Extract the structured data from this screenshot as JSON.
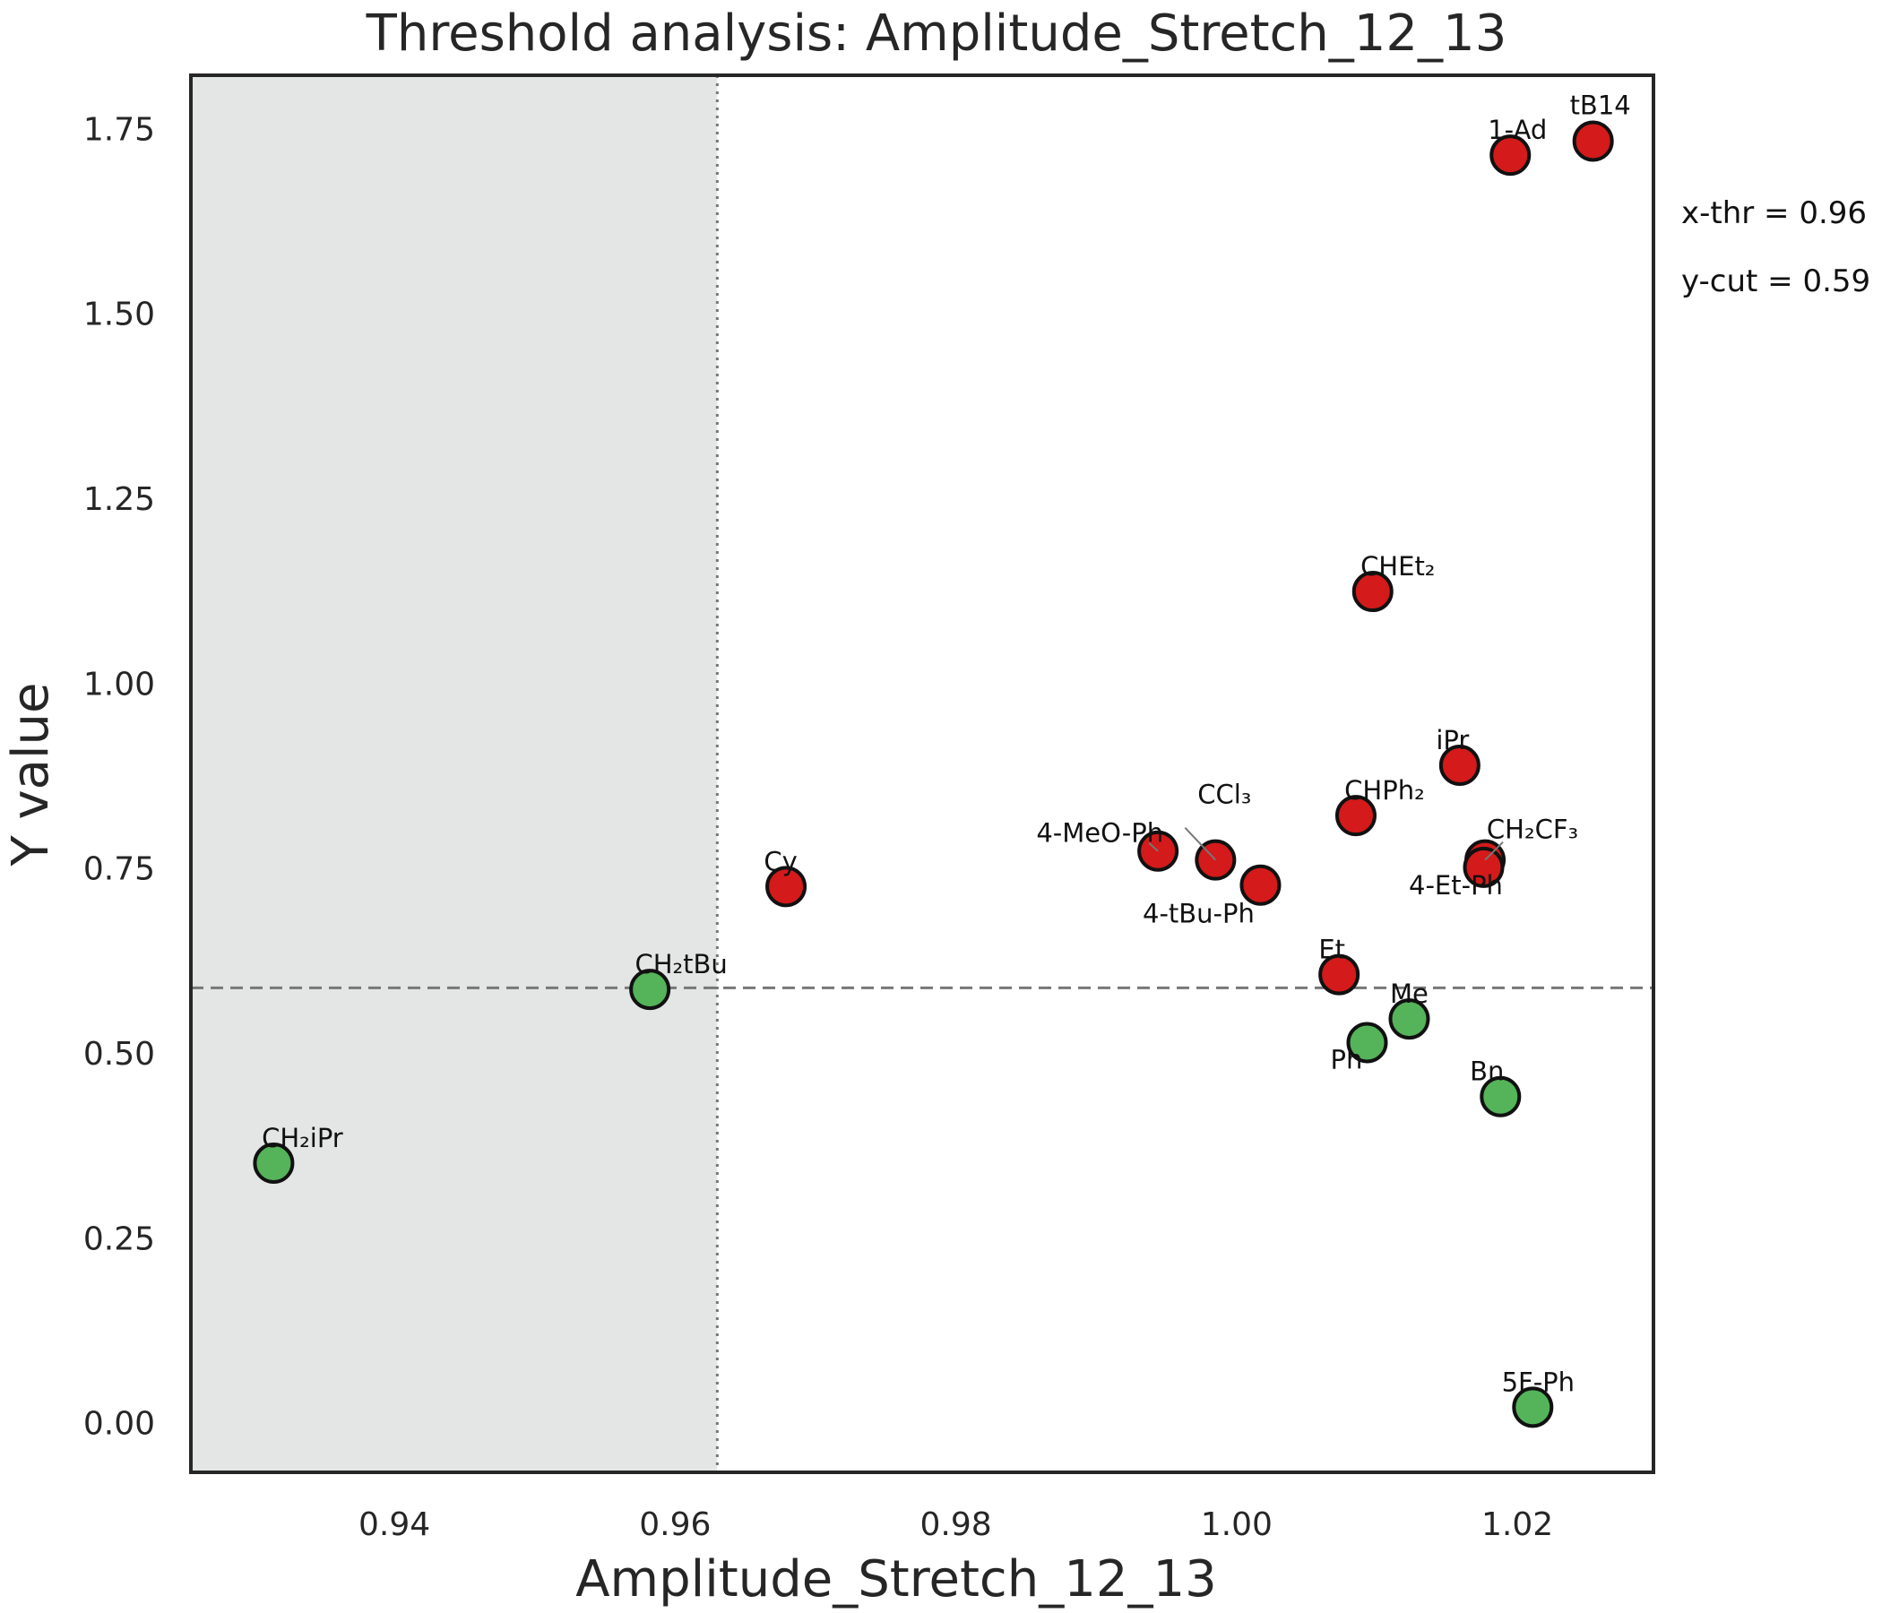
{
  "chart_data": {
    "type": "scatter",
    "title": "Threshold analysis: Amplitude_Stretch_12_13",
    "xlabel": "Amplitude_Stretch_12_13",
    "ylabel": "Y value",
    "xlim": [
      0.9255,
      1.0297
    ],
    "ylim": [
      -0.067,
      1.822
    ],
    "xticks": [
      0.94,
      0.96,
      0.98,
      1.0,
      1.02
    ],
    "xtick_labels": [
      "0.94",
      "0.96",
      "0.98",
      "1.00",
      "1.02"
    ],
    "yticks": [
      0.0,
      0.25,
      0.5,
      0.75,
      1.0,
      1.25,
      1.5,
      1.75
    ],
    "ytick_labels": [
      "0.00",
      "0.25",
      "0.50",
      "0.75",
      "1.00",
      "1.25",
      "1.50",
      "1.75"
    ],
    "x_threshold": 0.963,
    "y_cutoff": 0.588,
    "shaded_region": "x below threshold",
    "annotations": [
      "x-thr = 0.96",
      "y-cut = 0.59"
    ],
    "colors": {
      "above": "#d41a1a",
      "below": "#55b35a",
      "shade": "#e4e6e5",
      "frame": "#262626",
      "threshold_line": "#777777"
    },
    "points": [
      {
        "label": "tB14",
        "x": 1.0254,
        "y": 1.733,
        "group": "above"
      },
      {
        "label": "1-Ad",
        "x": 1.0195,
        "y": 1.714,
        "group": "above"
      },
      {
        "label": "CHEt₂",
        "x": 1.0097,
        "y": 1.124,
        "group": "above"
      },
      {
        "label": "iPr",
        "x": 1.0159,
        "y": 0.889,
        "group": "above"
      },
      {
        "label": "CHPh₂",
        "x": 1.0085,
        "y": 0.821,
        "group": "above"
      },
      {
        "label": "CH₂CF₃",
        "x": 1.0177,
        "y": 0.761,
        "group": "above"
      },
      {
        "label": "4-Et-Ph",
        "x": 1.0176,
        "y": 0.751,
        "group": "above"
      },
      {
        "label": "CCl₃",
        "x": 0.9985,
        "y": 0.761,
        "group": "above"
      },
      {
        "label": "4-MeO-Ph",
        "x": 0.9944,
        "y": 0.773,
        "group": "above"
      },
      {
        "label": "4-tBu-Ph",
        "x": 1.0017,
        "y": 0.727,
        "group": "above"
      },
      {
        "label": "Cy",
        "x": 0.9679,
        "y": 0.725,
        "group": "above"
      },
      {
        "label": "Et",
        "x": 1.0073,
        "y": 0.606,
        "group": "above"
      },
      {
        "label": "CH₂tBu",
        "x": 0.9582,
        "y": 0.586,
        "group": "below"
      },
      {
        "label": "Me",
        "x": 1.0123,
        "y": 0.546,
        "group": "below"
      },
      {
        "label": "Ph",
        "x": 1.0093,
        "y": 0.514,
        "group": "below"
      },
      {
        "label": "Bn",
        "x": 1.0188,
        "y": 0.441,
        "group": "below"
      },
      {
        "label": "CH₂iPr",
        "x": 0.9314,
        "y": 0.351,
        "group": "below"
      },
      {
        "label": "5F-Ph",
        "x": 1.0211,
        "y": 0.021,
        "group": "below"
      }
    ]
  }
}
